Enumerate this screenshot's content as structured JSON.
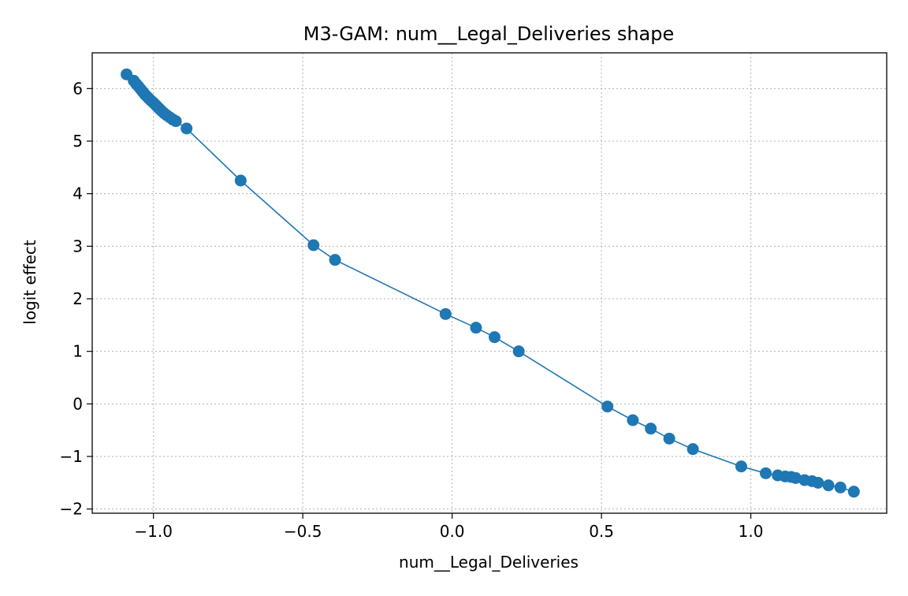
{
  "chart_data": {
    "type": "line",
    "title": "M3-GAM: num__Legal_Deliveries shape",
    "xlabel": "num__Legal_Deliveries",
    "ylabel": "logit effect",
    "xlim": [
      -1.205,
      1.455
    ],
    "ylim": [
      -2.08,
      6.68
    ],
    "xticks": [
      -1.0,
      -0.5,
      0.0,
      0.5,
      1.0
    ],
    "xtick_labels": [
      "−1.0",
      "−0.5",
      "0.0",
      "0.5",
      "1.0"
    ],
    "yticks": [
      -2,
      -1,
      0,
      1,
      2,
      3,
      4,
      5,
      6
    ],
    "ytick_labels": [
      "−2",
      "−1",
      "0",
      "1",
      "2",
      "3",
      "4",
      "5",
      "6"
    ],
    "grid": true,
    "grid_style": "dotted",
    "series": [
      {
        "color": "#1f77b4",
        "marker": "circle",
        "x": [
          -1.09,
          -1.066,
          -1.058,
          -1.05,
          -1.043,
          -1.036,
          -1.029,
          -1.022,
          -1.015,
          -1.008,
          -1.0,
          -0.993,
          -0.986,
          -0.979,
          -0.972,
          -0.964,
          -0.955,
          -0.945,
          -0.935,
          -0.925,
          -0.889,
          -0.708,
          -0.464,
          -0.392,
          -0.022,
          0.08,
          0.142,
          0.223,
          0.52,
          0.605,
          0.665,
          0.727,
          0.806,
          0.968,
          1.05,
          1.09,
          1.115,
          1.135,
          1.15,
          1.18,
          1.205,
          1.225,
          1.26,
          1.3,
          1.345
        ],
        "y": [
          6.27,
          6.15,
          6.09,
          6.04,
          5.99,
          5.94,
          5.89,
          5.85,
          5.81,
          5.77,
          5.73,
          5.69,
          5.65,
          5.61,
          5.57,
          5.53,
          5.49,
          5.45,
          5.41,
          5.38,
          5.24,
          4.25,
          3.02,
          2.74,
          1.71,
          1.45,
          1.27,
          1.0,
          -0.05,
          -0.31,
          -0.47,
          -0.66,
          -0.86,
          -1.19,
          -1.32,
          -1.36,
          -1.38,
          -1.39,
          -1.41,
          -1.45,
          -1.47,
          -1.5,
          -1.55,
          -1.59,
          -1.67
        ]
      }
    ]
  }
}
